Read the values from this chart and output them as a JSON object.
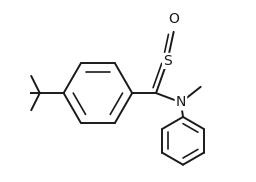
{
  "bg_color": "#ffffff",
  "line_color": "#1a1a1a",
  "line_width": 1.4,
  "atoms": {
    "O_label": "O",
    "S_label": "S",
    "N_label": "N"
  },
  "font_size_atom": 10,
  "figsize": [
    2.56,
    1.82
  ],
  "dpi": 100
}
